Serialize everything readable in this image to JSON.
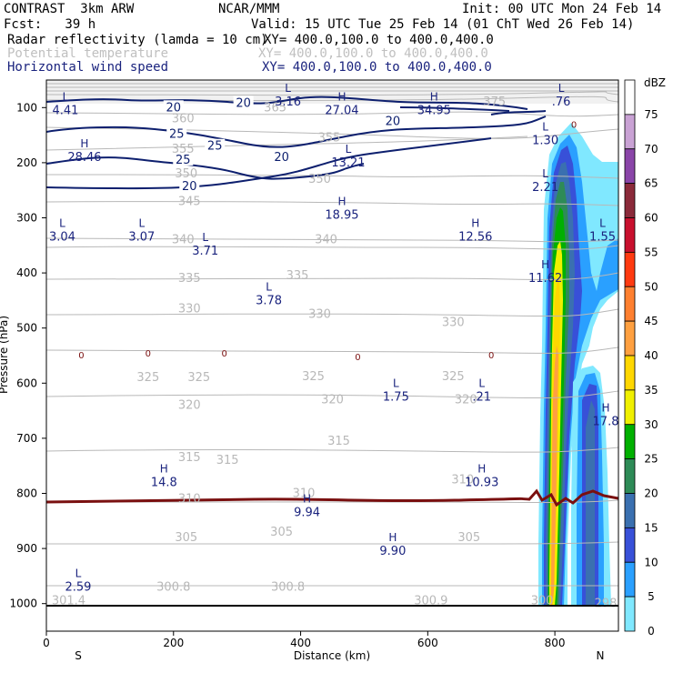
{
  "header": {
    "model": "CONTRAST  3km ARW",
    "center": "NCAR/MMM",
    "init": "Init: 00 UTC Mon 24 Feb 14",
    "fcst": "Fcst:   39 h",
    "valid": "Valid: 15 UTC Tue 25 Feb 14 (01 ChT Wed 26 Feb 14)",
    "field1_name": "Radar reflectivity (lamda = 10 cm)",
    "field1_xy": "XY= 400.0,100.0 to 400.0,400.0",
    "field2_name": "Potential temperature",
    "field2_xy": "XY= 400.0,100.0 to 400.0,400.0",
    "field3_name": "Horizontal wind speed",
    "field3_xy": "XY= 400.0,100.0 to 400.0,400.0"
  },
  "colors": {
    "wind": "#0d1f6e",
    "theta": "#b8b8b8",
    "freezing": "#7a1010",
    "label_blue": "#1a237e"
  },
  "chart_data": {
    "type": "cross-section",
    "xlabel": "Distance (km)",
    "ylabel": "Pressure (hPa)",
    "xlim": [
      0,
      900
    ],
    "ylim": [
      1050,
      50
    ],
    "x_ticks": [
      "0",
      "200",
      "400",
      "600",
      "800"
    ],
    "y_ticks": [
      "100",
      "200",
      "300",
      "400",
      "500",
      "600",
      "700",
      "800",
      "900",
      "1000"
    ],
    "x_ends": [
      "S",
      "N"
    ],
    "colorbar": {
      "unit": "dBZ",
      "levels": [
        "75",
        "70",
        "65",
        "60",
        "55",
        "50",
        "45",
        "40",
        "35",
        "30",
        "25",
        "20",
        "15",
        "10",
        "5",
        "0"
      ],
      "colors": [
        "#ffffff",
        "#c9a2d4",
        "#8a45a8",
        "#8b2a3a",
        "#c8102e",
        "#ff3a10",
        "#ff8030",
        "#ffa040",
        "#ffd700",
        "#f0f000",
        "#00b000",
        "#2e8b57",
        "#3a70b0",
        "#3850d8",
        "#2aa0ff",
        "#80e8ff"
      ]
    },
    "theta_labels": [
      {
        "text": "375",
        "x": 705,
        "p": 90
      },
      {
        "text": "365",
        "x": 360,
        "p": 100
      },
      {
        "text": "360",
        "x": 215,
        "p": 120
      },
      {
        "text": "355",
        "x": 215,
        "p": 175
      },
      {
        "text": "355",
        "x": 445,
        "p": 155
      },
      {
        "text": "350",
        "x": 220,
        "p": 220
      },
      {
        "text": "350",
        "x": 430,
        "p": 230
      },
      {
        "text": "345",
        "x": 225,
        "p": 270
      },
      {
        "text": "340",
        "x": 215,
        "p": 340
      },
      {
        "text": "340",
        "x": 440,
        "p": 340
      },
      {
        "text": "335",
        "x": 225,
        "p": 410
      },
      {
        "text": "335",
        "x": 395,
        "p": 405
      },
      {
        "text": "330",
        "x": 225,
        "p": 465
      },
      {
        "text": "330",
        "x": 430,
        "p": 475
      },
      {
        "text": "330",
        "x": 640,
        "p": 490
      },
      {
        "text": "325",
        "x": 160,
        "p": 590
      },
      {
        "text": "325",
        "x": 240,
        "p": 590
      },
      {
        "text": "325",
        "x": 420,
        "p": 588
      },
      {
        "text": "325",
        "x": 640,
        "p": 588
      },
      {
        "text": "320",
        "x": 225,
        "p": 640
      },
      {
        "text": "320",
        "x": 450,
        "p": 630
      },
      {
        "text": "320",
        "x": 660,
        "p": 630
      },
      {
        "text": "315",
        "x": 225,
        "p": 735
      },
      {
        "text": "315",
        "x": 285,
        "p": 740
      },
      {
        "text": "315",
        "x": 460,
        "p": 705
      },
      {
        "text": "310",
        "x": 225,
        "p": 810
      },
      {
        "text": "310",
        "x": 405,
        "p": 800
      },
      {
        "text": "310",
        "x": 655,
        "p": 775
      },
      {
        "text": "305",
        "x": 220,
        "p": 880
      },
      {
        "text": "305",
        "x": 370,
        "p": 870
      },
      {
        "text": "305",
        "x": 665,
        "p": 880
      },
      {
        "text": "301.4",
        "x": 35,
        "p": 995
      },
      {
        "text": "300.8",
        "x": 200,
        "p": 970
      },
      {
        "text": "300.8",
        "x": 380,
        "p": 970
      },
      {
        "text": "300.9",
        "x": 605,
        "p": 995
      },
      {
        "text": "300",
        "x": 780,
        "p": 995
      },
      {
        "text": "298",
        "x": 880,
        "p": 1000
      }
    ],
    "wind_labels": [
      {
        "text": "20",
        "x": 200,
        "p": 100
      },
      {
        "text": "20",
        "x": 310,
        "p": 92
      },
      {
        "text": "20",
        "x": 545,
        "p": 125
      },
      {
        "text": "25",
        "x": 205,
        "p": 148
      },
      {
        "text": "25",
        "x": 265,
        "p": 170
      },
      {
        "text": "25",
        "x": 215,
        "p": 195
      },
      {
        "text": "20",
        "x": 370,
        "p": 190
      },
      {
        "text": "20",
        "x": 225,
        "p": 243
      },
      {
        "text": "0",
        "x": 830,
        "p": 130
      },
      {
        "text": "0",
        "x": 55,
        "p": 548
      },
      {
        "text": "0",
        "x": 160,
        "p": 545
      },
      {
        "text": "0",
        "x": 280,
        "p": 545
      },
      {
        "text": "0",
        "x": 490,
        "p": 552
      },
      {
        "text": "0",
        "x": 700,
        "p": 548
      }
    ],
    "extrema": [
      {
        "type": "L",
        "value": "4.41",
        "x": 30,
        "p": 100
      },
      {
        "type": "L",
        "value": "3.16",
        "x": 380,
        "p": 85
      },
      {
        "type": "H",
        "value": "27.04",
        "x": 465,
        "p": 100
      },
      {
        "type": "H",
        "value": "34.95",
        "x": 610,
        "p": 100
      },
      {
        "type": "L",
        "value": ".76",
        "x": 810,
        "p": 85
      },
      {
        "type": "L",
        "value": "1.30",
        "x": 785,
        "p": 155
      },
      {
        "type": "H",
        "value": "28.46",
        "x": 60,
        "p": 185
      },
      {
        "type": "L",
        "value": "13.21",
        "x": 475,
        "p": 195
      },
      {
        "type": "L",
        "value": "2.21",
        "x": 785,
        "p": 240
      },
      {
        "type": "H",
        "value": "18.95",
        "x": 465,
        "p": 290
      },
      {
        "type": "L",
        "value": "3.04",
        "x": 25,
        "p": 330
      },
      {
        "type": "L",
        "value": "3.07",
        "x": 150,
        "p": 330
      },
      {
        "type": "L",
        "value": "3.71",
        "x": 250,
        "p": 355
      },
      {
        "type": "H",
        "value": "12.56",
        "x": 675,
        "p": 330
      },
      {
        "type": "L",
        "value": "1.55",
        "x": 875,
        "p": 330
      },
      {
        "type": "H",
        "value": "11.62",
        "x": 785,
        "p": 405
      },
      {
        "type": "L",
        "value": "3.78",
        "x": 350,
        "p": 445
      },
      {
        "type": "L",
        "value": "1.75",
        "x": 550,
        "p": 620
      },
      {
        "type": "L",
        "value": ".21",
        "x": 685,
        "p": 620
      },
      {
        "type": "H",
        "value": "17.8",
        "x": 880,
        "p": 665
      },
      {
        "type": "H",
        "value": "14.8",
        "x": 185,
        "p": 775
      },
      {
        "type": "H",
        "value": "10.93",
        "x": 685,
        "p": 775
      },
      {
        "type": "H",
        "value": "9.94",
        "x": 410,
        "p": 830
      },
      {
        "type": "H",
        "value": "9.90",
        "x": 545,
        "p": 900
      },
      {
        "type": "L",
        "value": "2.59",
        "x": 50,
        "p": 965
      }
    ]
  }
}
